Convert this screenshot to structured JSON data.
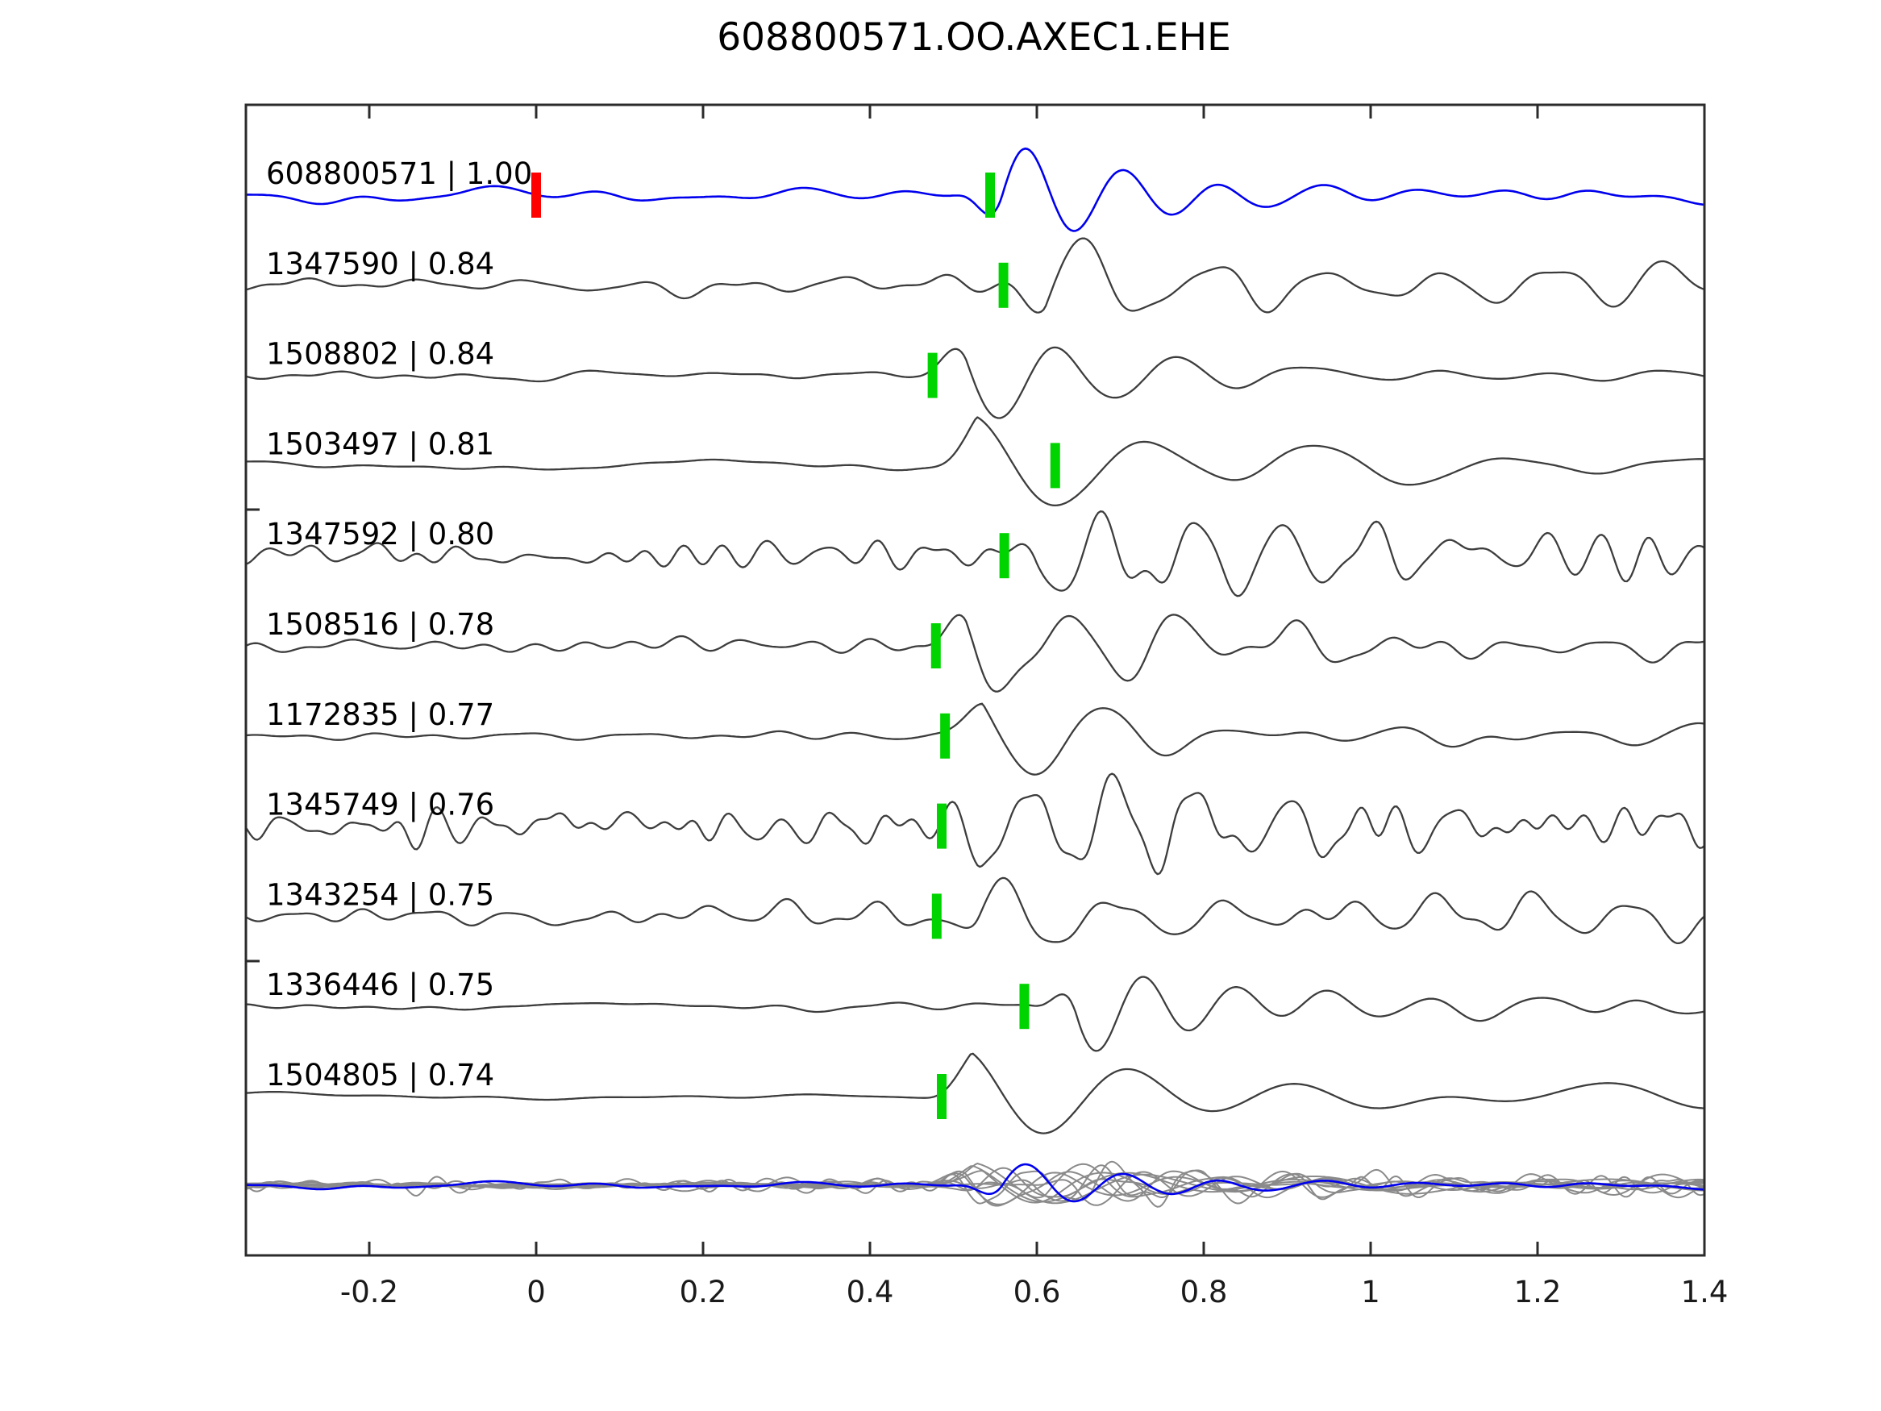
{
  "title": "608800571.OO.AXEC1.EHE",
  "chart_data": {
    "type": "line",
    "title": "608800571.OO.AXEC1.EHE",
    "xlabel": "",
    "ylabel": "",
    "x_range": [
      -0.35,
      1.4
    ],
    "x_tick_values": [
      -0.2,
      0,
      0.2,
      0.4,
      0.6,
      0.8,
      1.0,
      1.2,
      1.4
    ],
    "x_tick_labels": [
      "-0.2",
      "0",
      "0.2",
      "0.4",
      "0.6",
      "0.8",
      "1",
      "1.2",
      "1.4"
    ],
    "grid": false,
    "legend": "none",
    "description": "Stacked seismic waveform correlation plot: template event 608800571 (blue) above ten detected events (dark gray), each annotated with 'event_id | cross-correlation'. Green bars mark pick times, red bar marks zero time on the template. Bottom row overlays all detections (gray) with the template (blue).",
    "colors": {
      "template": "#0000ee",
      "detection": "#3d3d3d",
      "overlay_gray": "#8a8a8a",
      "pick_marker": "#00d400",
      "origin_marker": "#ff0000",
      "frame": "#2b2b2b",
      "tick_label": "#1a1a1a",
      "trace_label": "#000000"
    },
    "traces": [
      {
        "label": "608800571 | 1.00",
        "event_id": "608800571",
        "correlation": 1.0,
        "role": "template",
        "pick_time": 0.544,
        "origin_time": 0.0,
        "synth": {
          "seed": 11,
          "hf": 6,
          "hfF": [
            5,
            14
          ],
          "lf": 5,
          "t0": 0.5,
          "A": 64,
          "f": 8.5,
          "ph": 3.14159,
          "decay": 0.2,
          "tailA": 14,
          "tailF": [
            4,
            11
          ]
        }
      },
      {
        "label": "1347590 | 0.84",
        "event_id": "1347590",
        "correlation": 0.84,
        "role": "detection",
        "pick_time": 0.56,
        "synth": {
          "seed": 22,
          "hf": 10,
          "hfF": [
            7,
            22
          ],
          "lf": 4,
          "t0": 0.55,
          "A": 66,
          "f": 7,
          "ph": 3.14159,
          "decay": 0.22,
          "tailA": 20,
          "tailF": [
            5,
            14
          ]
        }
      },
      {
        "label": "1508802 | 0.84",
        "event_id": "1508802",
        "correlation": 0.84,
        "role": "detection",
        "pick_time": 0.475,
        "synth": {
          "seed": 33,
          "hf": 5,
          "hfF": [
            5,
            16
          ],
          "lf": 3,
          "t0": 0.455,
          "A": 58,
          "f": 7.5,
          "ph": 0,
          "decay": 0.22,
          "tailA": 13,
          "tailF": [
            3,
            9
          ]
        }
      },
      {
        "label": "1503497 | 0.81",
        "event_id": "1503497",
        "correlation": 0.81,
        "role": "detection",
        "pick_time": 0.622,
        "synth": {
          "seed": 44,
          "hf": 3,
          "hfF": [
            4,
            12
          ],
          "lf": 4,
          "t0": 0.468,
          "A": 62,
          "f": 4.8,
          "ph": 0,
          "decay": 0.3,
          "tailA": 12,
          "tailF": [
            2.5,
            6
          ]
        }
      },
      {
        "label": "1347592 | 0.80",
        "event_id": "1347592",
        "correlation": 0.8,
        "role": "detection",
        "pick_time": 0.561,
        "synth": {
          "seed": 55,
          "hf": 22,
          "hfF": [
            9,
            30
          ],
          "lf": 5,
          "t0": 0.54,
          "A": 46,
          "f": 9,
          "ph": 0,
          "decay": 0.3,
          "tailA": 24,
          "tailF": [
            8,
            24
          ]
        }
      },
      {
        "label": "1508516 | 0.78",
        "event_id": "1508516",
        "correlation": 0.78,
        "role": "detection",
        "pick_time": 0.479,
        "synth": {
          "seed": 66,
          "hf": 11,
          "hfF": [
            6,
            18
          ],
          "lf": 5,
          "t0": 0.455,
          "A": 56,
          "f": 7,
          "ph": 0,
          "decay": 0.25,
          "tailA": 17,
          "tailF": [
            5,
            13
          ]
        }
      },
      {
        "label": "1172835 | 0.77",
        "event_id": "1172835",
        "correlation": 0.77,
        "role": "detection",
        "pick_time": 0.49,
        "synth": {
          "seed": 77,
          "hf": 7,
          "hfF": [
            6,
            16
          ],
          "lf": 3,
          "t0": 0.475,
          "A": 60,
          "f": 6,
          "ph": 0,
          "decay": 0.24,
          "tailA": 12,
          "tailF": [
            4,
            10
          ]
        }
      },
      {
        "label": "1345749 | 0.76",
        "event_id": "1345749",
        "correlation": 0.76,
        "role": "detection",
        "pick_time": 0.486,
        "synth": {
          "seed": 88,
          "hf": 24,
          "hfF": [
            9,
            32
          ],
          "lf": 5,
          "t0": 0.47,
          "A": 50,
          "f": 10,
          "ph": 0,
          "decay": 0.35,
          "tailA": 26,
          "tailF": [
            8,
            24
          ]
        }
      },
      {
        "label": "1343254 | 0.75",
        "event_id": "1343254",
        "correlation": 0.75,
        "role": "detection",
        "pick_time": 0.48,
        "synth": {
          "seed": 99,
          "hf": 13,
          "hfF": [
            7,
            20
          ],
          "lf": 5,
          "t0": 0.47,
          "A": 56,
          "f": 8,
          "ph": 3.14159,
          "decay": 0.3,
          "tailA": 20,
          "tailF": [
            6,
            16
          ]
        }
      },
      {
        "label": "1336446 | 0.75",
        "event_id": "1336446",
        "correlation": 0.75,
        "role": "detection",
        "pick_time": 0.585,
        "synth": {
          "seed": 111,
          "hf": 5,
          "hfF": [
            5,
            14
          ],
          "lf": 3,
          "t0": 0.59,
          "A": 62,
          "f": 9,
          "ph": 0,
          "decay": 0.18,
          "tailA": 11,
          "tailF": [
            4,
            10
          ]
        }
      },
      {
        "label": "1504805 | 0.74",
        "event_id": "1504805",
        "correlation": 0.74,
        "role": "detection",
        "pick_time": 0.486,
        "synth": {
          "seed": 123,
          "hf": 3.5,
          "hfF": [
            3.5,
            9
          ],
          "lf": 3,
          "t0": 0.462,
          "A": 58,
          "f": 5,
          "ph": 0,
          "decay": 0.27,
          "tailA": 16,
          "tailF": [
            2,
            5
          ]
        }
      }
    ],
    "overlay_row": {
      "content": "all detection traces overlaid in gray with template trace in blue",
      "scale": 0.45
    }
  }
}
